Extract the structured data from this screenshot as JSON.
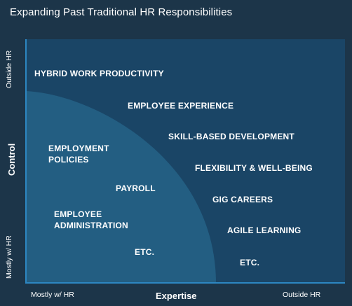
{
  "title": "Expanding Past Traditional HR Responsibilities",
  "axes": {
    "x_title": "Expertise",
    "x_low": "Mostly w/ HR",
    "x_high": "Outside HR",
    "y_title": "Control",
    "y_low": "Mostly w/ HR",
    "y_high": "Outside HR"
  },
  "colors": {
    "background": "#1c3549",
    "outer_region": "#1a4566",
    "inner_region": "#235e82",
    "axis": "#2d86c1",
    "text": "#ffffff"
  },
  "inside_hr": {
    "employment_policies": [
      "EMPLOYMENT",
      "POLICIES"
    ],
    "payroll": "PAYROLL",
    "employee_administration": [
      "EMPLOYEE",
      "ADMINISTRATION"
    ],
    "etc": "ETC."
  },
  "outside_hr": {
    "hybrid_work": "HYBRID WORK PRODUCTIVITY",
    "employee_experience": "EMPLOYEE EXPERIENCE",
    "skill_based": "SKILL-BASED DEVELOPMENT",
    "flexibility": "FLEXIBILITY & WELL-BEING",
    "gig_careers": "GIG CAREERS",
    "agile_learning": "AGILE LEARNING",
    "etc": "ETC."
  }
}
